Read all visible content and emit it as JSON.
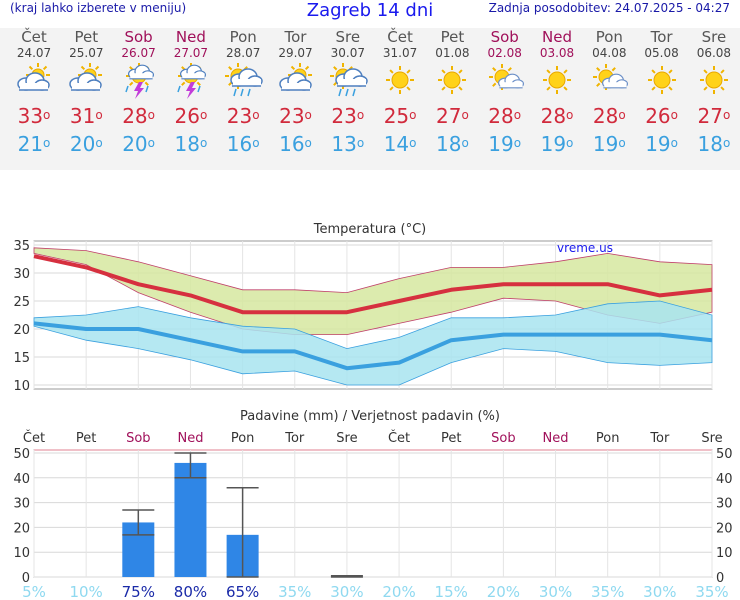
{
  "header": {
    "menu_hint": "(kraj lahko izberete v meniju)",
    "title": "Zagreb 14 dni",
    "updated": "Zadnja posodobitev: 24.07.2025 - 04:27"
  },
  "days": [
    {
      "name": "Čet",
      "date": "24.07",
      "weekend": false,
      "icon": "partly-cloudy-icon",
      "tmax": "33",
      "tmin": "21"
    },
    {
      "name": "Pet",
      "date": "25.07",
      "weekend": false,
      "icon": "partly-cloudy-icon",
      "tmax": "31",
      "tmin": "20"
    },
    {
      "name": "Sob",
      "date": "26.07",
      "weekend": true,
      "icon": "thunderstorm-icon",
      "tmax": "28",
      "tmin": "20"
    },
    {
      "name": "Ned",
      "date": "27.07",
      "weekend": true,
      "icon": "thunderstorm-icon",
      "tmax": "26",
      "tmin": "18"
    },
    {
      "name": "Pon",
      "date": "28.07",
      "weekend": false,
      "icon": "sun-rain-icon",
      "tmax": "23",
      "tmin": "16"
    },
    {
      "name": "Tor",
      "date": "29.07",
      "weekend": false,
      "icon": "partly-cloudy-icon",
      "tmax": "23",
      "tmin": "16"
    },
    {
      "name": "Sre",
      "date": "30.07",
      "weekend": false,
      "icon": "sun-rain-icon",
      "tmax": "23",
      "tmin": "13"
    },
    {
      "name": "Čet",
      "date": "31.07",
      "weekend": false,
      "icon": "sun-icon",
      "tmax": "25",
      "tmin": "14"
    },
    {
      "name": "Pet",
      "date": "01.08",
      "weekend": false,
      "icon": "sun-icon",
      "tmax": "27",
      "tmin": "18"
    },
    {
      "name": "Sob",
      "date": "02.08",
      "weekend": true,
      "icon": "sun-cloud-icon",
      "tmax": "28",
      "tmin": "19"
    },
    {
      "name": "Ned",
      "date": "03.08",
      "weekend": true,
      "icon": "sun-icon",
      "tmax": "28",
      "tmin": "19"
    },
    {
      "name": "Pon",
      "date": "04.08",
      "weekend": false,
      "icon": "sun-cloud-icon",
      "tmax": "28",
      "tmin": "19"
    },
    {
      "name": "Tor",
      "date": "05.08",
      "weekend": false,
      "icon": "sun-icon",
      "tmax": "26",
      "tmin": "19"
    },
    {
      "name": "Sre",
      "date": "06.08",
      "weekend": false,
      "icon": "sun-icon",
      "tmax": "27",
      "tmin": "18"
    }
  ],
  "colors": {
    "max_line": "#d6303f",
    "max_band": "#d6e8a0",
    "min_line": "#3aa0df",
    "min_band": "#a8e4f0",
    "overlap": "#8fd694",
    "bar": "#2f86e6",
    "weekend": "#a0105a",
    "prob_high": "#1a2aa8",
    "prob_low": "#8fd9f0"
  },
  "chart_data": [
    {
      "type": "line",
      "title": "Temperatura (°C)",
      "watermark": "vreme.us",
      "ylim": [
        10,
        35
      ],
      "yticks": [
        10,
        15,
        20,
        25,
        30,
        35
      ],
      "grid": true,
      "x": [
        "24.07",
        "25.07",
        "26.07",
        "27.07",
        "28.07",
        "29.07",
        "30.07",
        "31.07",
        "01.08",
        "02.08",
        "03.08",
        "04.08",
        "05.08",
        "06.08"
      ],
      "series": [
        {
          "role": "max",
          "values": [
            33,
            31,
            28,
            26,
            23,
            23,
            23,
            25,
            27,
            28,
            28,
            28,
            26,
            27
          ]
        },
        {
          "role": "max_upper",
          "values": [
            34.5,
            34,
            32,
            29.5,
            27,
            27,
            26.5,
            29,
            31,
            31,
            32,
            33.5,
            32,
            31.5
          ]
        },
        {
          "role": "max_lower",
          "values": [
            33.5,
            31.5,
            26.5,
            23,
            20,
            19,
            19,
            21,
            23,
            25.5,
            25,
            22.5,
            21,
            23
          ]
        },
        {
          "role": "min",
          "values": [
            21,
            20,
            20,
            18,
            16,
            16,
            13,
            14,
            18,
            19,
            19,
            19,
            19,
            18
          ]
        },
        {
          "role": "min_upper",
          "values": [
            22,
            22.5,
            24,
            22,
            20.5,
            20,
            16.5,
            18.5,
            22,
            22,
            22.5,
            24.5,
            25,
            22.5
          ]
        },
        {
          "role": "min_lower",
          "values": [
            20.5,
            18,
            16.5,
            14.5,
            12,
            12.5,
            10,
            10,
            14,
            16.5,
            16,
            14,
            13.5,
            14
          ]
        }
      ]
    },
    {
      "type": "bar",
      "title": "Padavine (mm) / Verjetnost padavin (%)",
      "ylim": [
        0,
        50
      ],
      "yticks": [
        0,
        10,
        20,
        30,
        40,
        50
      ],
      "grid": true,
      "categories": [
        "Čet",
        "Pet",
        "Sob",
        "Ned",
        "Pon",
        "Tor",
        "Sre",
        "Čet",
        "Pet",
        "Sob",
        "Ned",
        "Pon",
        "Tor",
        "Sre"
      ],
      "weekend": [
        false,
        false,
        true,
        true,
        false,
        false,
        false,
        false,
        false,
        true,
        true,
        false,
        false,
        false
      ],
      "values": [
        0,
        0,
        22,
        46,
        17,
        0,
        0,
        0,
        0,
        0,
        0,
        0,
        0,
        0
      ],
      "error_low": [
        null,
        null,
        17,
        40,
        0,
        null,
        0,
        null,
        null,
        null,
        null,
        null,
        null,
        null
      ],
      "error_high": [
        null,
        null,
        27,
        50,
        36,
        null,
        0.5,
        null,
        null,
        null,
        null,
        null,
        null,
        null
      ],
      "probabilities": [
        "5%",
        "10%",
        "75%",
        "80%",
        "65%",
        "35%",
        "30%",
        "20%",
        "15%",
        "20%",
        "30%",
        "35%",
        "30%",
        "35%"
      ],
      "prob_high": [
        false,
        false,
        true,
        true,
        true,
        false,
        false,
        false,
        false,
        false,
        false,
        false,
        false,
        false
      ]
    }
  ]
}
